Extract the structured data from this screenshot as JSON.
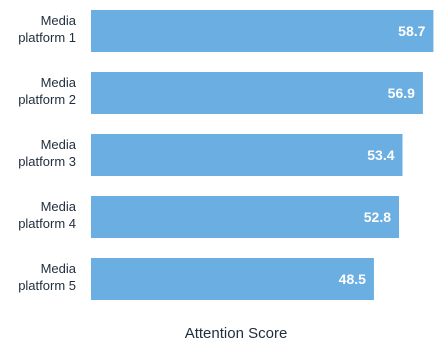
{
  "chart_data": {
    "type": "bar",
    "orientation": "horizontal",
    "categories": [
      "Media platform 1",
      "Media platform 2",
      "Media platform 3",
      "Media platform 4",
      "Media platform 5"
    ],
    "category_lines": [
      [
        "Media",
        "platform 1"
      ],
      [
        "Media",
        "platform 2"
      ],
      [
        "Media",
        "platform 3"
      ],
      [
        "Media",
        "platform 4"
      ],
      [
        "Media",
        "platform 5"
      ]
    ],
    "values": [
      58.7,
      56.9,
      53.4,
      52.8,
      48.5
    ],
    "value_labels": [
      "58.7",
      "56.9",
      "53.4",
      "52.8",
      "48.5"
    ],
    "xlabel": "Attention Score",
    "ylabel": "",
    "title": "",
    "xlim": [
      0,
      60
    ],
    "grid": false,
    "legend": "none",
    "bar_color": "#6aaee2"
  }
}
